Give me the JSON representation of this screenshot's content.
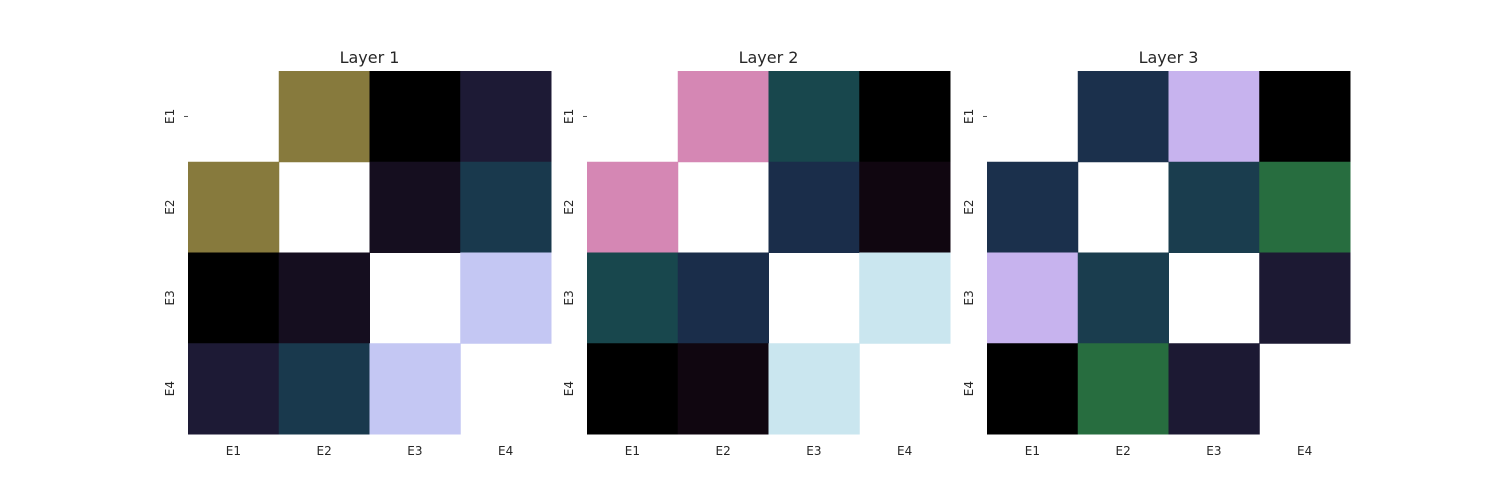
{
  "chart_data": [
    {
      "type": "heatmap",
      "title": "Layer 1",
      "x_labels": [
        "E1",
        "E2",
        "E3",
        "E4"
      ],
      "y_labels": [
        "E1",
        "E2",
        "E3",
        "E4"
      ],
      "colorbar": false,
      "cells": [
        [
          null,
          "#877a3d",
          "#000000",
          "#1d1a35"
        ],
        [
          "#877a3d",
          null,
          "#150e1f",
          "#19394d"
        ],
        [
          "#000000",
          "#150e1f",
          null,
          "#c4c7f3"
        ],
        [
          "#1d1a35",
          "#19394d",
          "#c4c7f3",
          null
        ]
      ]
    },
    {
      "type": "heatmap",
      "title": "Layer 2",
      "x_labels": [
        "E1",
        "E2",
        "E3",
        "E4"
      ],
      "y_labels": [
        "E1",
        "E2",
        "E3",
        "E4"
      ],
      "colorbar": false,
      "cells": [
        [
          null,
          "#d587b4",
          "#18474d",
          "#000000"
        ],
        [
          "#d587b4",
          null,
          "#1a2d4a",
          "#100610"
        ],
        [
          "#18474d",
          "#1a2d4a",
          null,
          "#cae6ef"
        ],
        [
          "#000000",
          "#100610",
          "#cae6ef",
          null
        ]
      ]
    },
    {
      "type": "heatmap",
      "title": "Layer 3",
      "x_labels": [
        "E1",
        "E2",
        "E3",
        "E4"
      ],
      "y_labels": [
        "E1",
        "E2",
        "E3",
        "E4"
      ],
      "colorbar": false,
      "cells": [
        [
          null,
          "#1b304c",
          "#c7b3ee",
          "#000000"
        ],
        [
          "#1b304c",
          null,
          "#1a3d4e",
          "#276d3f"
        ],
        [
          "#c7b3ee",
          "#1a3d4e",
          null,
          "#1c1933"
        ],
        [
          "#000000",
          "#276d3f",
          "#1c1933",
          null
        ]
      ]
    }
  ]
}
